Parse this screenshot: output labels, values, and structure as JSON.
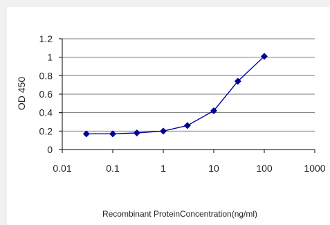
{
  "chart_data": {
    "type": "line",
    "xlabel": "Recombinant ProteinConcentration(ng/ml)",
    "ylabel": "OD 450",
    "x_scale": "log",
    "xlim": [
      0.01,
      1000
    ],
    "ylim": [
      0,
      1.2
    ],
    "x_ticks": [
      "0.01",
      "0.1",
      "1",
      "10",
      "100",
      "1000"
    ],
    "y_ticks": [
      "0",
      "0.2",
      "0.4",
      "0.6",
      "0.8",
      "1",
      "1.2"
    ],
    "grid": "horizontal",
    "series": [
      {
        "color": "#000099",
        "marker": "diamond",
        "x": [
          0.03,
          0.1,
          0.3,
          1,
          3,
          10,
          30,
          100
        ],
        "y": [
          0.17,
          0.17,
          0.18,
          0.2,
          0.26,
          0.42,
          0.74,
          1.01
        ]
      }
    ]
  }
}
